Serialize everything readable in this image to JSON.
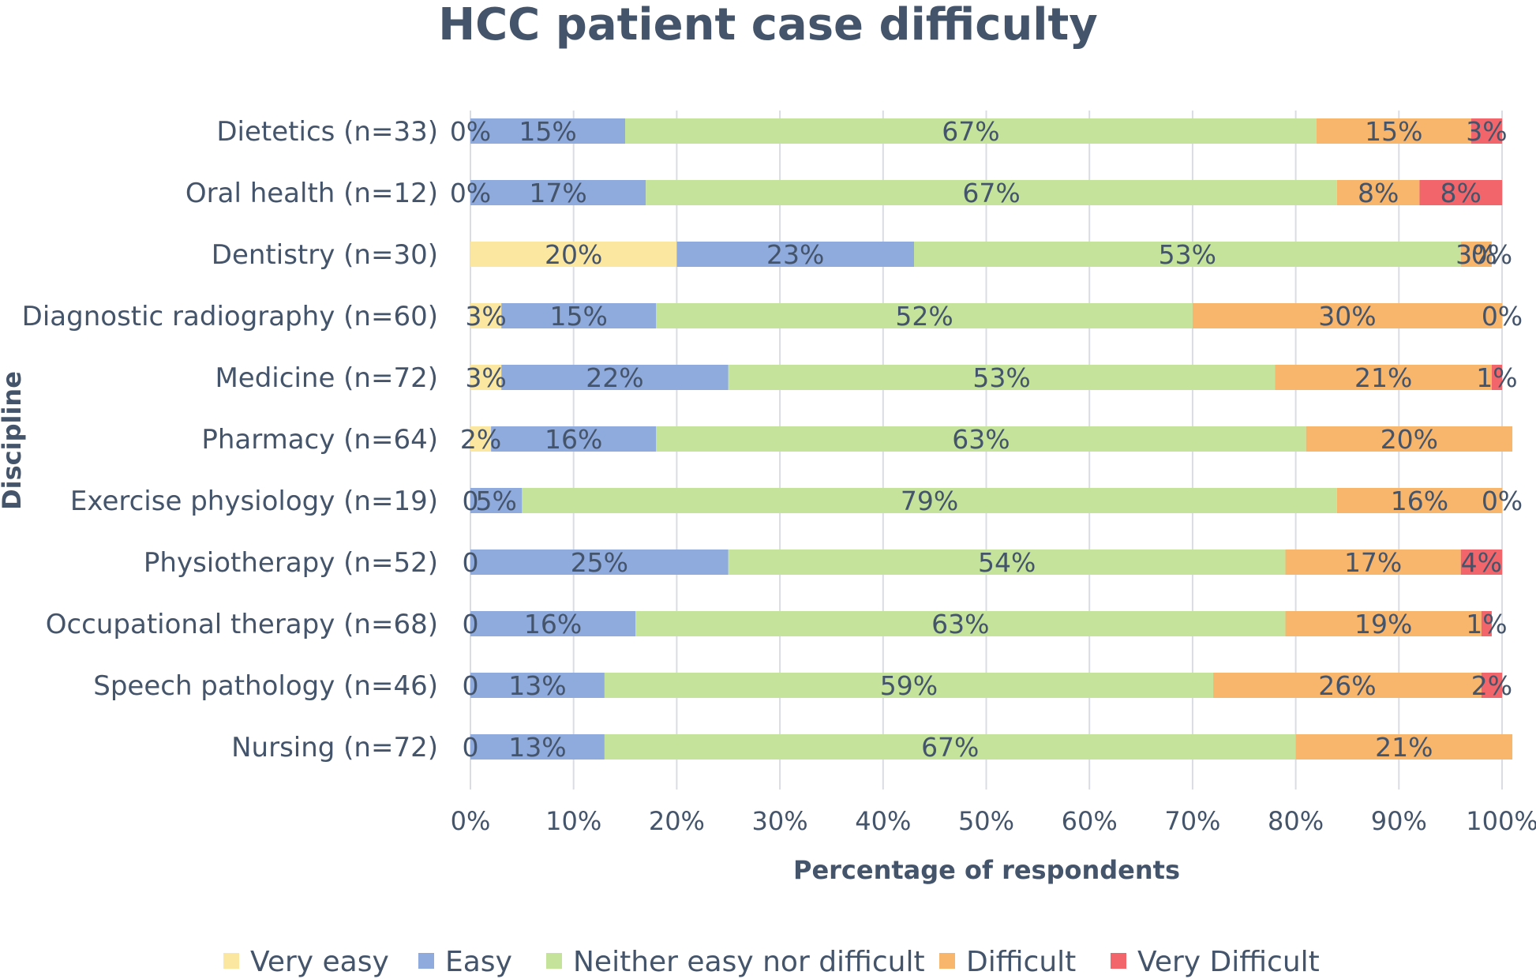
{
  "chart_data": {
    "type": "bar",
    "orientation": "horizontal",
    "stacked": "percent",
    "title": "HCC patient case difficulty",
    "xlabel": "Percentage of respondents",
    "ylabel": "Discipline",
    "xlim": [
      0,
      100
    ],
    "x_ticks": [
      "0%",
      "10%",
      "20%",
      "30%",
      "40%",
      "50%",
      "60%",
      "70%",
      "80%",
      "90%",
      "100%"
    ],
    "grid": "vertical",
    "legend_position": "bottom",
    "categories": [
      "Dietetics (n=33)",
      "Oral health (n=12)",
      "Dentistry (n=30)",
      "Diagnostic radiography (n=60)",
      "Medicine (n=72)",
      "Pharmacy (n=64)",
      "Exercise physiology (n=19)",
      "Physiotherapy (n=52)",
      "Occupational therapy (n=68)",
      "Speech pathology (n=46)",
      "Nursing (n=72)"
    ],
    "series": [
      {
        "name": "Very easy",
        "color": "#fce7a0",
        "values": [
          0,
          0,
          20,
          3,
          3,
          2,
          0,
          0,
          0,
          0,
          0
        ],
        "labels": [
          "0%",
          "0%",
          "20%",
          "3%",
          "3%",
          "2%",
          "0",
          "0",
          "0",
          "0",
          "0"
        ]
      },
      {
        "name": "Easy",
        "color": "#8faadc",
        "values": [
          15,
          17,
          23,
          15,
          22,
          16,
          5,
          25,
          16,
          13,
          13
        ],
        "labels": [
          "15%",
          "17%",
          "23%",
          "15%",
          "22%",
          "16%",
          "5%",
          "25%",
          "16%",
          "13%",
          "13%"
        ]
      },
      {
        "name": "Neither easy nor difficult",
        "color": "#c5e39a",
        "values": [
          67,
          67,
          53,
          52,
          53,
          63,
          79,
          54,
          63,
          59,
          67
        ],
        "labels": [
          "67%",
          "67%",
          "53%",
          "52%",
          "53%",
          "63%",
          "79%",
          "54%",
          "63%",
          "59%",
          "67%"
        ]
      },
      {
        "name": "Difficult",
        "color": "#f8b56c",
        "values": [
          15,
          8,
          3,
          30,
          21,
          20,
          16,
          17,
          19,
          26,
          21
        ],
        "labels": [
          "15%",
          "8%",
          "3%",
          "30%",
          "21%",
          "20%",
          "16%",
          "17%",
          "19%",
          "26%",
          "21%"
        ]
      },
      {
        "name": "Very Difficult",
        "color": "#f2656a",
        "values": [
          3,
          8,
          0,
          0,
          1,
          0,
          0,
          4,
          1,
          2,
          0
        ],
        "labels": [
          "3%",
          "8%",
          "0%",
          "0%",
          "1%",
          "",
          "0%",
          "4%",
          "1%",
          "2%",
          ""
        ]
      }
    ]
  }
}
